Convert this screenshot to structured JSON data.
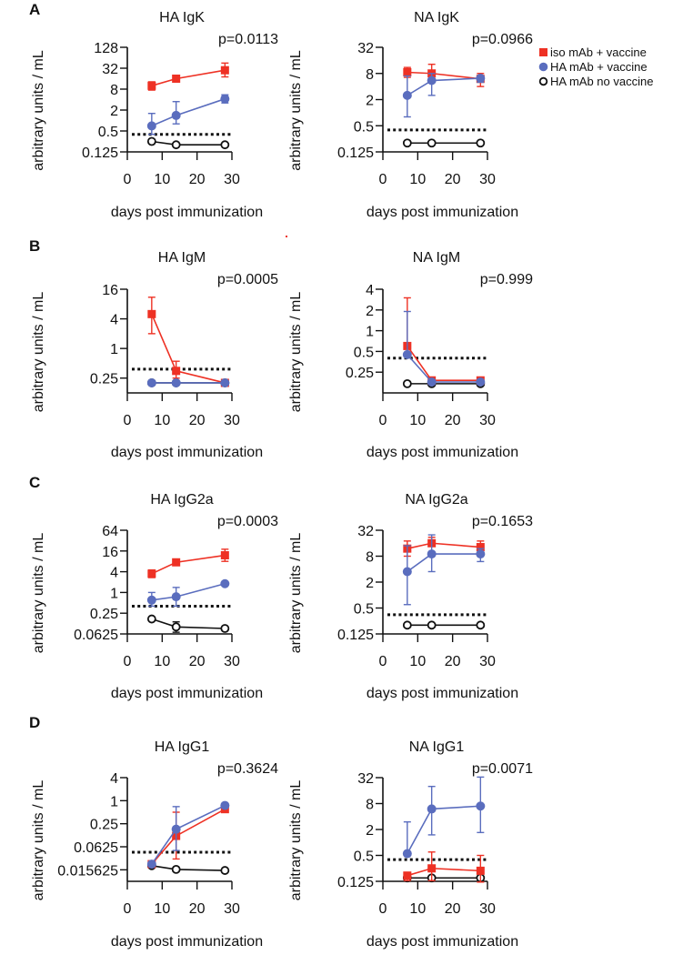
{
  "legend": [
    {
      "label": "iso mAb + vaccine",
      "color": "#ee3124",
      "marker": "square"
    },
    {
      "label": "HA mAb + vaccine",
      "color": "#5a6dbe",
      "marker": "circle"
    },
    {
      "label": "HA mAb no vaccine",
      "color": "#111111",
      "marker": "open-circle"
    }
  ],
  "panel_letters": [
    "A",
    "B",
    "C",
    "D"
  ],
  "chart_data": [
    {
      "type": "line",
      "title": "HA IgK",
      "pvalue": "p=0.0113",
      "xlabel": "days post immunization",
      "ylabel": "arbitrary units / mL",
      "yscale": "log2",
      "yticks": [
        0.125,
        0.5,
        2,
        8,
        32,
        128
      ],
      "ytick_labels": [
        "0.125",
        "0.5",
        "2",
        "8",
        "32",
        "128"
      ],
      "ylim": [
        0.125,
        128
      ],
      "xticks": [
        0,
        10,
        20,
        30
      ],
      "xlim": [
        0,
        30
      ],
      "detection_limit": 0.4,
      "x": [
        7,
        14,
        28
      ],
      "series": [
        {
          "name": "iso mAb + vaccine",
          "values": [
            10,
            16,
            28
          ],
          "err_low": [
            7.5,
            13,
            18
          ],
          "err_high": [
            13,
            19,
            45
          ]
        },
        {
          "name": "HA mAb + vaccine",
          "values": [
            0.7,
            1.4,
            4.2
          ],
          "err_low": [
            0.4,
            0.8,
            3.2
          ],
          "err_high": [
            1.6,
            3.5,
            5.5
          ]
        },
        {
          "name": "HA mAb no vaccine",
          "values": [
            0.25,
            0.2,
            0.2
          ],
          "err_low": [
            0.25,
            0.2,
            0.2
          ],
          "err_high": [
            0.25,
            0.2,
            0.2
          ]
        }
      ]
    },
    {
      "type": "line",
      "title": "NA IgK",
      "pvalue": "p=0.0966",
      "xlabel": "days post immunization",
      "ylabel": "arbitrary units / mL",
      "yscale": "log2",
      "yticks": [
        0.125,
        0.5,
        2,
        8,
        32
      ],
      "ytick_labels": [
        "0.125",
        "0.5",
        "2",
        "8",
        "32"
      ],
      "ylim": [
        0.125,
        32
      ],
      "xticks": [
        0,
        10,
        20,
        30
      ],
      "xlim": [
        0,
        30
      ],
      "detection_limit": 0.4,
      "x": [
        7,
        14,
        28
      ],
      "series": [
        {
          "name": "iso mAb + vaccine",
          "values": [
            8.5,
            8,
            6
          ],
          "err_low": [
            6.5,
            5,
            4
          ],
          "err_high": [
            11,
            13,
            8
          ]
        },
        {
          "name": "HA mAb + vaccine",
          "values": [
            2.5,
            5.5,
            6.2
          ],
          "err_low": [
            0.8,
            2.5,
            5
          ],
          "err_high": [
            7,
            8,
            7
          ]
        },
        {
          "name": "HA mAb no vaccine",
          "values": [
            0.2,
            0.2,
            0.2
          ],
          "err_low": [
            0.2,
            0.2,
            0.2
          ],
          "err_high": [
            0.2,
            0.2,
            0.2
          ]
        }
      ]
    },
    {
      "type": "line",
      "title": "HA IgM",
      "pvalue": "p=0.0005",
      "xlabel": "days post immunization",
      "ylabel": "arbitrary units / mL",
      "yscale": "log2",
      "yticks": [
        0.25,
        1,
        4,
        16
      ],
      "ytick_labels": [
        "0.25",
        "1",
        "4",
        "16"
      ],
      "ylim": [
        0.125,
        16
      ],
      "xticks": [
        0,
        10,
        20,
        30
      ],
      "xlim": [
        0,
        30
      ],
      "detection_limit": 0.38,
      "x": [
        7,
        14,
        28
      ],
      "series": [
        {
          "name": "iso mAb + vaccine",
          "values": [
            5,
            0.35,
            0.2
          ],
          "err_low": [
            2,
            0.25,
            0.2
          ],
          "err_high": [
            11,
            0.55,
            0.2
          ]
        },
        {
          "name": "HA mAb + vaccine",
          "values": [
            0.2,
            0.2,
            0.2
          ],
          "err_low": [
            0.2,
            0.2,
            0.2
          ],
          "err_high": [
            0.2,
            0.2,
            0.2
          ]
        },
        {
          "name": "HA mAb no vaccine",
          "values": [
            0.2,
            0.2,
            0.2
          ],
          "err_low": [
            0.2,
            0.2,
            0.2
          ],
          "err_high": [
            0.2,
            0.2,
            0.2
          ]
        }
      ]
    },
    {
      "type": "line",
      "title": "NA IgM",
      "pvalue": "p=0.999",
      "xlabel": "days post immunization",
      "ylabel": "arbitrary units / mL",
      "yscale": "log2",
      "yticks": [
        0.25,
        0.5,
        1,
        2,
        4
      ],
      "ytick_labels": [
        "0.25",
        "0.5",
        "1",
        "2",
        "4"
      ],
      "ylim": [
        0.125,
        4
      ],
      "xticks": [
        0,
        10,
        20,
        30
      ],
      "xlim": [
        0,
        30
      ],
      "detection_limit": 0.4,
      "x": [
        7,
        14,
        28
      ],
      "series": [
        {
          "name": "iso mAb + vaccine",
          "values": [
            0.6,
            0.19,
            0.19
          ],
          "err_low": [
            0.6,
            0.19,
            0.19
          ],
          "err_high": [
            3,
            0.19,
            0.19
          ]
        },
        {
          "name": "HA mAb + vaccine",
          "values": [
            0.45,
            0.18,
            0.18
          ],
          "err_low": [
            0.45,
            0.18,
            0.18
          ],
          "err_high": [
            1.9,
            0.18,
            0.18
          ]
        },
        {
          "name": "HA mAb no vaccine",
          "values": [
            0.17,
            0.17,
            0.17
          ],
          "err_low": [
            0.17,
            0.17,
            0.17
          ],
          "err_high": [
            0.17,
            0.17,
            0.17
          ]
        }
      ]
    },
    {
      "type": "line",
      "title": "HA IgG2a",
      "pvalue": "p=0.0003",
      "xlabel": "days post immunization",
      "ylabel": "arbitrary units / mL",
      "yscale": "log2",
      "yticks": [
        0.0625,
        0.25,
        1,
        4,
        16,
        64
      ],
      "ytick_labels": [
        "0.0625",
        "0.25",
        "1",
        "4",
        "16",
        "64"
      ],
      "ylim": [
        0.0625,
        64
      ],
      "xticks": [
        0,
        10,
        20,
        30
      ],
      "xlim": [
        0,
        30
      ],
      "detection_limit": 0.4,
      "x": [
        7,
        14,
        28
      ],
      "series": [
        {
          "name": "iso mAb + vaccine",
          "values": [
            3.5,
            7.5,
            12
          ],
          "err_low": [
            2.7,
            6.5,
            8
          ],
          "err_high": [
            4.5,
            8.5,
            18
          ]
        },
        {
          "name": "HA mAb + vaccine",
          "values": [
            0.6,
            0.75,
            1.8
          ],
          "err_low": [
            0.4,
            0.4,
            1.8
          ],
          "err_high": [
            1,
            1.4,
            1.8
          ]
        },
        {
          "name": "HA mAb no vaccine",
          "values": [
            0.17,
            0.1,
            0.09
          ],
          "err_low": [
            0.17,
            0.07,
            0.09
          ],
          "err_high": [
            0.17,
            0.14,
            0.09
          ]
        }
      ]
    },
    {
      "type": "line",
      "title": "NA IgG2a",
      "pvalue": "p=0.1653",
      "xlabel": "days post immunization",
      "ylabel": "arbitrary units / mL",
      "yscale": "log2",
      "yticks": [
        0.125,
        0.5,
        2,
        8,
        32
      ],
      "ytick_labels": [
        "0.125",
        "0.5",
        "2",
        "8",
        "32"
      ],
      "ylim": [
        0.125,
        32
      ],
      "xticks": [
        0,
        10,
        20,
        30
      ],
      "xlim": [
        0,
        30
      ],
      "detection_limit": 0.35,
      "x": [
        7,
        14,
        28
      ],
      "series": [
        {
          "name": "iso mAb + vaccine",
          "values": [
            12,
            16,
            13
          ],
          "err_low": [
            8,
            16,
            11
          ],
          "err_high": [
            18,
            22,
            18
          ]
        },
        {
          "name": "HA mAb + vaccine",
          "values": [
            3.5,
            9,
            9
          ],
          "err_low": [
            0.6,
            3.5,
            6
          ],
          "err_high": [
            14,
            25,
            12
          ]
        },
        {
          "name": "HA mAb no vaccine",
          "values": [
            0.2,
            0.2,
            0.2
          ],
          "err_low": [
            0.2,
            0.2,
            0.2
          ],
          "err_high": [
            0.2,
            0.2,
            0.2
          ]
        }
      ]
    },
    {
      "type": "line",
      "title": "HA IgG1",
      "pvalue": "p=0.3624",
      "xlabel": "days post immunization",
      "ylabel": "arbitrary units / mL",
      "yscale": "log2",
      "yticks": [
        0.015625,
        0.0625,
        0.25,
        1,
        4
      ],
      "ytick_labels": [
        "0.015625",
        "0.0625",
        "0.25",
        "1",
        "4"
      ],
      "ylim": [
        0.0078125,
        4
      ],
      "xticks": [
        0,
        10,
        20,
        30
      ],
      "xlim": [
        0,
        30
      ],
      "detection_limit": 0.045,
      "x": [
        7,
        14,
        28
      ],
      "series": [
        {
          "name": "iso mAb + vaccine",
          "values": [
            0.022,
            0.12,
            0.6
          ],
          "err_low": [
            0.022,
            0.03,
            0.6
          ],
          "err_high": [
            0.022,
            0.5,
            0.6
          ]
        },
        {
          "name": "HA mAb + vaccine",
          "values": [
            0.022,
            0.18,
            0.75
          ],
          "err_low": [
            0.022,
            0.05,
            0.75
          ],
          "err_high": [
            0.022,
            0.7,
            0.75
          ]
        },
        {
          "name": "HA mAb no vaccine",
          "values": [
            0.02,
            0.016,
            0.015
          ],
          "err_low": [
            0.02,
            0.016,
            0.015
          ],
          "err_high": [
            0.02,
            0.016,
            0.015
          ]
        }
      ]
    },
    {
      "type": "line",
      "title": "NA IgG1",
      "pvalue": "p=0.0071",
      "xlabel": "days post immunization",
      "ylabel": "arbitrary units / mL",
      "yscale": "log2",
      "yticks": [
        0.125,
        0.5,
        2,
        8,
        32
      ],
      "ytick_labels": [
        "0.125",
        "0.5",
        "2",
        "8",
        "32"
      ],
      "ylim": [
        0.125,
        32
      ],
      "xticks": [
        0,
        10,
        20,
        30
      ],
      "xlim": [
        0,
        30
      ],
      "detection_limit": 0.4,
      "x": [
        7,
        14,
        28
      ],
      "series": [
        {
          "name": "iso mAb + vaccine",
          "values": [
            0.17,
            0.25,
            0.22
          ],
          "err_low": [
            0.13,
            0.13,
            0.12
          ],
          "err_high": [
            0.17,
            0.6,
            0.5
          ]
        },
        {
          "name": "HA mAb + vaccine",
          "values": [
            0.55,
            6,
            7
          ],
          "err_low": [
            0.55,
            1.5,
            1.7
          ],
          "err_high": [
            3,
            20,
            33
          ]
        },
        {
          "name": "HA mAb no vaccine",
          "values": [
            0.15,
            0.15,
            0.15
          ],
          "err_low": [
            0.15,
            0.15,
            0.15
          ],
          "err_high": [
            0.15,
            0.15,
            0.15
          ]
        }
      ]
    }
  ]
}
